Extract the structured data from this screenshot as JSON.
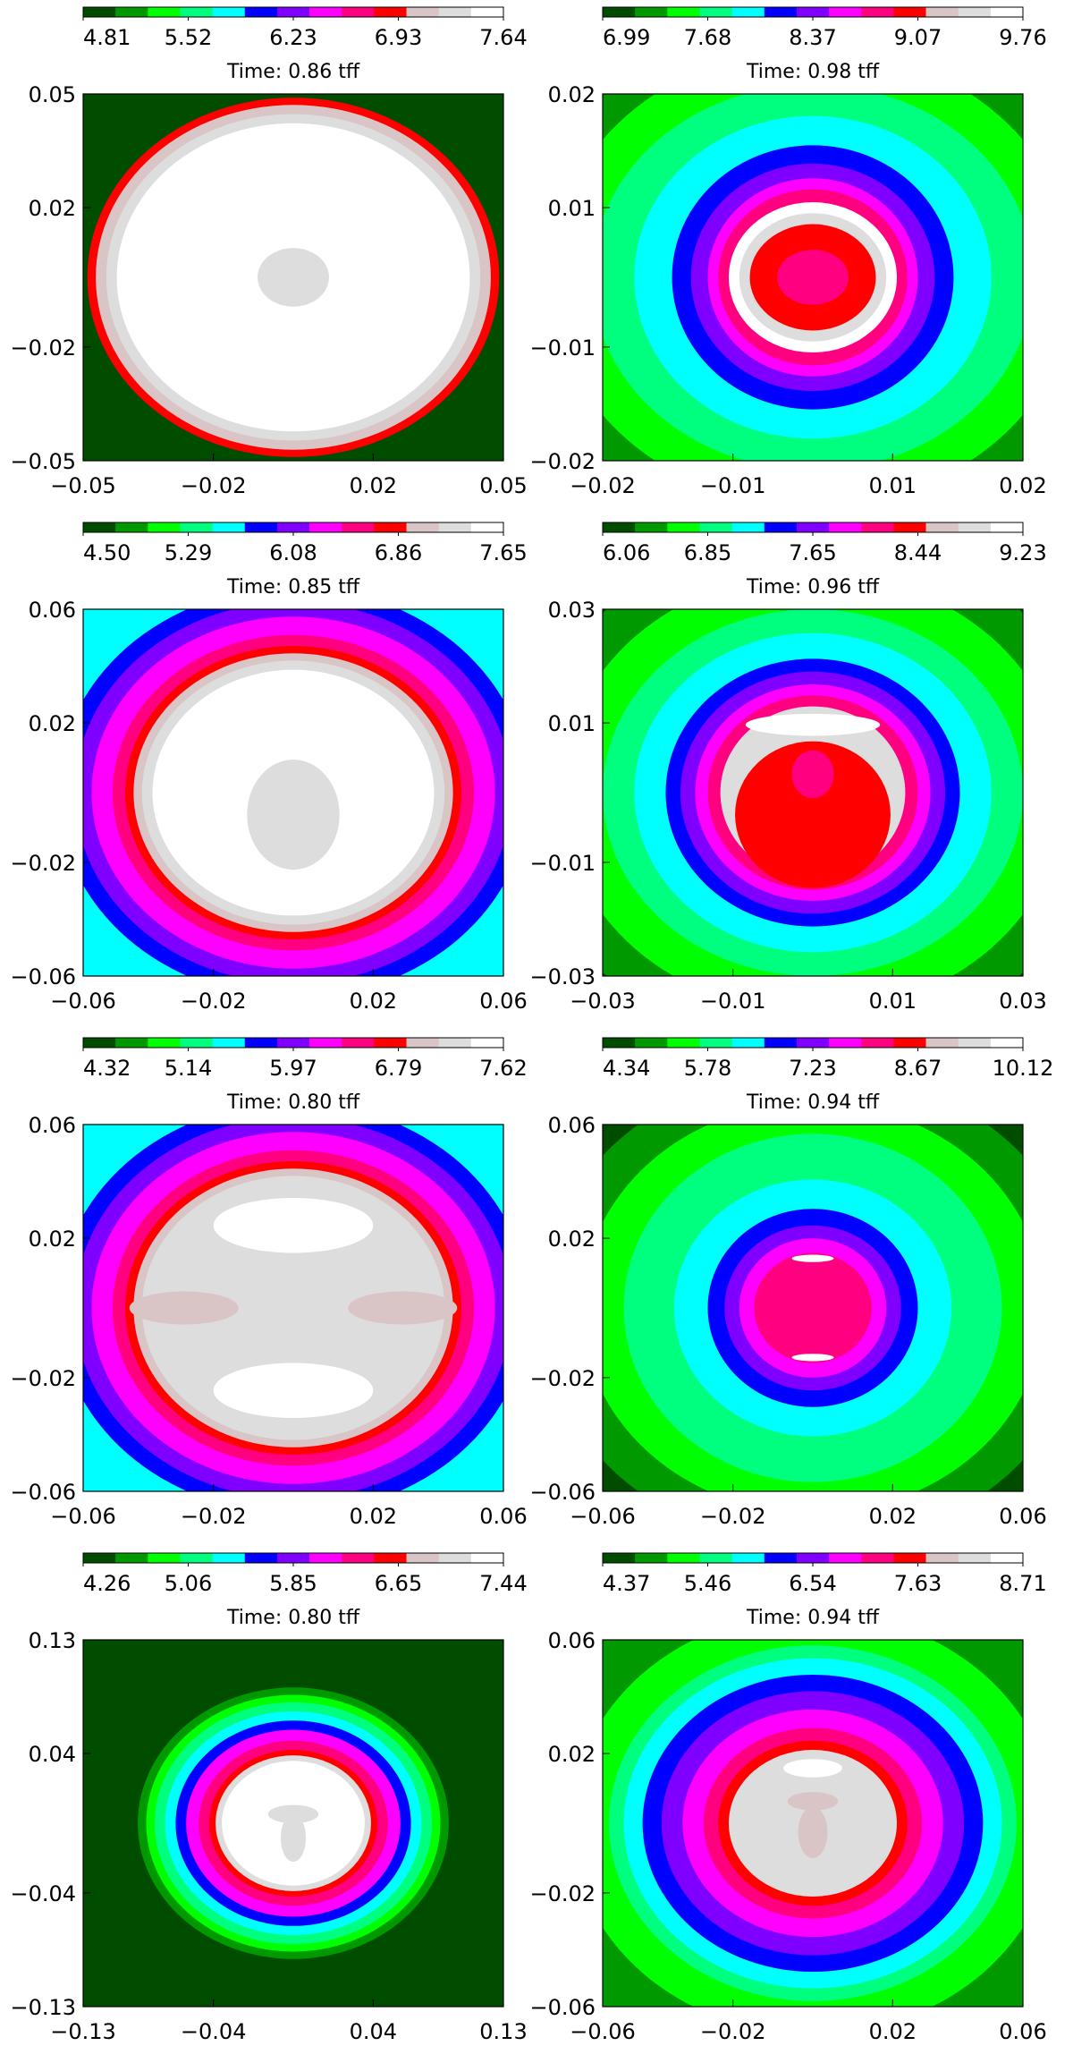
{
  "palette": [
    "#004d00",
    "#009900",
    "#00ff00",
    "#00ff7f",
    "#00ffff",
    "#0000ff",
    "#8000ff",
    "#ff00ff",
    "#ff0080",
    "#ff0000",
    "#d9c5c5",
    "#dddddd",
    "#ffffff"
  ],
  "chart_data": [
    {
      "type": "heatmap",
      "time_label": "Time: 0.86  tff",
      "colorbar": {
        "ticks": [
          "4.81",
          "5.52",
          "6.23",
          "6.93",
          "7.64"
        ]
      },
      "xticks": [
        "−0.05",
        "−0.02",
        "0.02",
        "0.05"
      ],
      "yticks": [
        "0.05",
        "0.02",
        "−0.02",
        "−0.05"
      ],
      "bg": 0,
      "rings": [
        {
          "rx": 0.98,
          "ry": 0.98,
          "c": 9
        },
        {
          "rx": 0.94,
          "ry": 0.94,
          "c": 10
        },
        {
          "rx": 0.89,
          "ry": 0.89,
          "c": 11
        },
        {
          "rx": 0.84,
          "ry": 0.84,
          "c": 12
        }
      ],
      "blobs": [
        {
          "cx": 0,
          "cy": 0,
          "rx": 0.17,
          "ry": 0.16,
          "c": 11
        }
      ]
    },
    {
      "type": "heatmap",
      "time_label": "Time: 0.98  tff",
      "colorbar": {
        "ticks": [
          "6.99",
          "7.68",
          "8.37",
          "9.07",
          "9.76"
        ]
      },
      "xticks": [
        "−0.02",
        "−0.01",
        "0.01",
        "0.02"
      ],
      "yticks": [
        "0.02",
        "0.01",
        "−0.01",
        "−0.02"
      ],
      "bg": 0,
      "rings": [
        {
          "rx": 1.45,
          "ry": 1.45,
          "c": 1
        },
        {
          "rx": 1.25,
          "ry": 1.25,
          "c": 2
        },
        {
          "rx": 1.05,
          "ry": 1.05,
          "c": 3
        },
        {
          "rx": 0.85,
          "ry": 0.88,
          "c": 4
        },
        {
          "rx": 0.67,
          "ry": 0.72,
          "c": 5
        },
        {
          "rx": 0.58,
          "ry": 0.62,
          "c": 6
        },
        {
          "rx": 0.5,
          "ry": 0.54,
          "c": 7
        },
        {
          "rx": 0.45,
          "ry": 0.48,
          "c": 8
        },
        {
          "rx": 0.4,
          "ry": 0.41,
          "c": 12
        },
        {
          "rx": 0.35,
          "ry": 0.35,
          "c": 11
        },
        {
          "rx": 0.3,
          "ry": 0.29,
          "c": 9
        },
        {
          "rx": 0.17,
          "ry": 0.15,
          "c": 8
        }
      ],
      "blobs": []
    },
    {
      "type": "heatmap",
      "time_label": "Time: 0.85  tff",
      "colorbar": {
        "ticks": [
          "4.50",
          "5.29",
          "6.08",
          "6.86",
          "7.65"
        ]
      },
      "xticks": [
        "−0.06",
        "−0.02",
        "0.02",
        "0.06"
      ],
      "yticks": [
        "0.06",
        "0.02",
        "−0.02",
        "−0.06"
      ],
      "bg": 4,
      "rings": [
        {
          "rx": 1.12,
          "ry": 1.12,
          "c": 5
        },
        {
          "rx": 1.04,
          "ry": 1.04,
          "c": 6
        },
        {
          "rx": 0.96,
          "ry": 0.96,
          "c": 7
        },
        {
          "rx": 0.86,
          "ry": 0.86,
          "c": 8
        },
        {
          "rx": 0.8,
          "ry": 0.8,
          "c": 9
        },
        {
          "rx": 0.76,
          "ry": 0.76,
          "c": 10
        },
        {
          "rx": 0.72,
          "ry": 0.72,
          "c": 11
        },
        {
          "rx": 0.67,
          "ry": 0.67,
          "c": 12
        }
      ],
      "blobs": [
        {
          "cx": 0,
          "cy": -0.12,
          "rx": 0.22,
          "ry": 0.3,
          "c": 11
        }
      ]
    },
    {
      "type": "heatmap",
      "time_label": "Time: 0.96  tff",
      "colorbar": {
        "ticks": [
          "6.06",
          "6.85",
          "7.65",
          "8.44",
          "9.23"
        ]
      },
      "xticks": [
        "−0.03",
        "−0.01",
        "0.01",
        "0.03"
      ],
      "yticks": [
        "0.03",
        "0.01",
        "−0.01",
        "−0.03"
      ],
      "bg": 0,
      "rings": [
        {
          "rx": 1.4,
          "ry": 1.4,
          "c": 1
        },
        {
          "rx": 1.2,
          "ry": 1.2,
          "c": 2
        },
        {
          "rx": 1.0,
          "ry": 1.0,
          "c": 3
        },
        {
          "rx": 0.85,
          "ry": 0.87,
          "c": 4
        },
        {
          "rx": 0.7,
          "ry": 0.73,
          "c": 5
        },
        {
          "rx": 0.63,
          "ry": 0.66,
          "c": 6
        },
        {
          "rx": 0.56,
          "ry": 0.59,
          "c": 7
        },
        {
          "rx": 0.5,
          "ry": 0.53,
          "c": 8
        },
        {
          "rx": 0.44,
          "ry": 0.47,
          "c": 11
        }
      ],
      "blobs": [
        {
          "cx": 0,
          "cy": 0.37,
          "rx": 0.32,
          "ry": 0.06,
          "c": 12
        },
        {
          "cx": 0,
          "cy": -0.12,
          "rx": 0.37,
          "ry": 0.4,
          "c": 9
        },
        {
          "cx": 0,
          "cy": 0.1,
          "rx": 0.1,
          "ry": 0.13,
          "c": 8
        }
      ]
    },
    {
      "type": "heatmap",
      "time_label": "Time: 0.80  tff",
      "colorbar": {
        "ticks": [
          "4.32",
          "5.14",
          "5.97",
          "6.79",
          "7.62"
        ]
      },
      "xticks": [
        "−0.06",
        "−0.02",
        "0.02",
        "0.06"
      ],
      "yticks": [
        "0.06",
        "0.02",
        "−0.02",
        "−0.06"
      ],
      "bg": 4,
      "rings": [
        {
          "rx": 1.12,
          "ry": 1.12,
          "c": 5
        },
        {
          "rx": 1.04,
          "ry": 1.04,
          "c": 6
        },
        {
          "rx": 0.96,
          "ry": 0.96,
          "c": 7
        },
        {
          "rx": 0.86,
          "ry": 0.86,
          "c": 8
        },
        {
          "rx": 0.8,
          "ry": 0.8,
          "c": 9
        },
        {
          "rx": 0.76,
          "ry": 0.76,
          "c": 10
        },
        {
          "rx": 0.72,
          "ry": 0.72,
          "c": 11
        }
      ],
      "blobs": [
        {
          "cx": 0,
          "cy": 0.45,
          "rx": 0.38,
          "ry": 0.15,
          "c": 12
        },
        {
          "cx": 0,
          "cy": -0.45,
          "rx": 0.38,
          "ry": 0.15,
          "c": 12
        },
        {
          "cx": -0.52,
          "cy": 0,
          "rx": 0.26,
          "ry": 0.09,
          "c": 10
        },
        {
          "cx": 0.52,
          "cy": 0,
          "rx": 0.26,
          "ry": 0.09,
          "c": 10
        }
      ]
    },
    {
      "type": "heatmap",
      "time_label": "Time: 0.94  tff",
      "colorbar": {
        "ticks": [
          "4.34",
          "5.78",
          "7.23",
          "8.67",
          "10.12"
        ]
      },
      "xticks": [
        "−0.06",
        "−0.02",
        "0.02",
        "0.06"
      ],
      "yticks": [
        "0.06",
        "0.02",
        "−0.02",
        "−0.06"
      ],
      "bg": 0,
      "rings": [
        {
          "rx": 1.3,
          "ry": 1.3,
          "c": 1
        },
        {
          "rx": 1.1,
          "ry": 1.12,
          "c": 2
        },
        {
          "rx": 0.9,
          "ry": 0.95,
          "c": 3
        },
        {
          "rx": 0.66,
          "ry": 0.7,
          "c": 4
        },
        {
          "rx": 0.5,
          "ry": 0.54,
          "c": 5
        },
        {
          "rx": 0.42,
          "ry": 0.45,
          "c": 6
        },
        {
          "rx": 0.35,
          "ry": 0.38,
          "c": 7
        },
        {
          "rx": 0.28,
          "ry": 0.3,
          "c": 8
        }
      ],
      "blobs": [
        {
          "cx": 0,
          "cy": 0.27,
          "rx": 0.1,
          "ry": 0.02,
          "c": 12
        },
        {
          "cx": 0,
          "cy": -0.27,
          "rx": 0.1,
          "ry": 0.02,
          "c": 12
        }
      ]
    },
    {
      "type": "heatmap",
      "time_label": "Time: 0.80  tff",
      "colorbar": {
        "ticks": [
          "4.26",
          "5.06",
          "5.85",
          "6.65",
          "7.44"
        ]
      },
      "xticks": [
        "−0.13",
        "−0.04",
        "0.04",
        "0.13"
      ],
      "yticks": [
        "0.13",
        "0.04",
        "−0.04",
        "−0.13"
      ],
      "bg": 0,
      "rings": [
        {
          "rx": 0.74,
          "ry": 0.74,
          "c": 1
        },
        {
          "rx": 0.7,
          "ry": 0.7,
          "c": 2
        },
        {
          "rx": 0.66,
          "ry": 0.66,
          "c": 3
        },
        {
          "rx": 0.61,
          "ry": 0.61,
          "c": 4
        },
        {
          "rx": 0.56,
          "ry": 0.56,
          "c": 5
        },
        {
          "rx": 0.51,
          "ry": 0.51,
          "c": 7
        },
        {
          "rx": 0.45,
          "ry": 0.45,
          "c": 8
        },
        {
          "rx": 0.4,
          "ry": 0.4,
          "c": 9
        },
        {
          "rx": 0.37,
          "ry": 0.37,
          "c": 11
        },
        {
          "rx": 0.34,
          "ry": 0.34,
          "c": 12
        }
      ],
      "blobs": [
        {
          "cx": 0,
          "cy": -0.08,
          "rx": 0.06,
          "ry": 0.13,
          "c": 11
        },
        {
          "cx": 0,
          "cy": 0.05,
          "rx": 0.12,
          "ry": 0.05,
          "c": 11
        }
      ]
    },
    {
      "type": "heatmap",
      "time_label": "Time: 0.94  tff",
      "colorbar": {
        "ticks": [
          "4.37",
          "5.46",
          "6.54",
          "7.63",
          "8.71"
        ]
      },
      "xticks": [
        "−0.06",
        "−0.02",
        "0.02",
        "0.06"
      ],
      "yticks": [
        "0.06",
        "0.02",
        "−0.02",
        "−0.06"
      ],
      "bg": 1,
      "rings": [
        {
          "rx": 1.15,
          "ry": 1.15,
          "c": 2
        },
        {
          "rx": 0.97,
          "ry": 0.97,
          "c": 3
        },
        {
          "rx": 0.9,
          "ry": 0.9,
          "c": 4
        },
        {
          "rx": 0.81,
          "ry": 0.81,
          "c": 5
        },
        {
          "rx": 0.72,
          "ry": 0.72,
          "c": 6
        },
        {
          "rx": 0.62,
          "ry": 0.62,
          "c": 7
        },
        {
          "rx": 0.52,
          "ry": 0.52,
          "c": 8
        },
        {
          "rx": 0.45,
          "ry": 0.45,
          "c": 9
        },
        {
          "rx": 0.4,
          "ry": 0.4,
          "c": 11
        }
      ],
      "blobs": [
        {
          "cx": 0,
          "cy": 0.3,
          "rx": 0.14,
          "ry": 0.05,
          "c": 12
        },
        {
          "cx": 0,
          "cy": -0.05,
          "rx": 0.07,
          "ry": 0.14,
          "c": 10
        },
        {
          "cx": 0,
          "cy": 0.12,
          "rx": 0.12,
          "ry": 0.05,
          "c": 10
        }
      ]
    }
  ]
}
